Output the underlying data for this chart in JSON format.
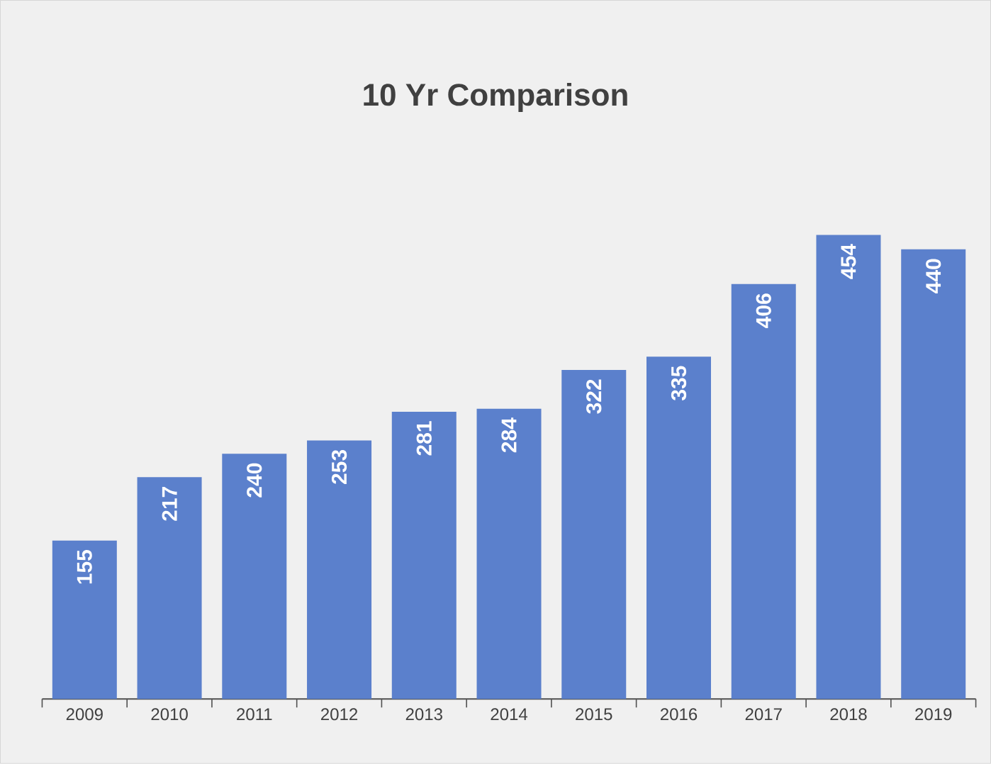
{
  "chart_data": {
    "type": "bar",
    "title": "10 Yr Comparison",
    "categories": [
      "2009",
      "2010",
      "2011",
      "2012",
      "2013",
      "2014",
      "2015",
      "2016",
      "2017",
      "2018",
      "2019"
    ],
    "values": [
      155,
      217,
      240,
      253,
      281,
      284,
      322,
      335,
      406,
      454,
      440
    ],
    "color": "#5b80cc",
    "data_labels": true
  }
}
